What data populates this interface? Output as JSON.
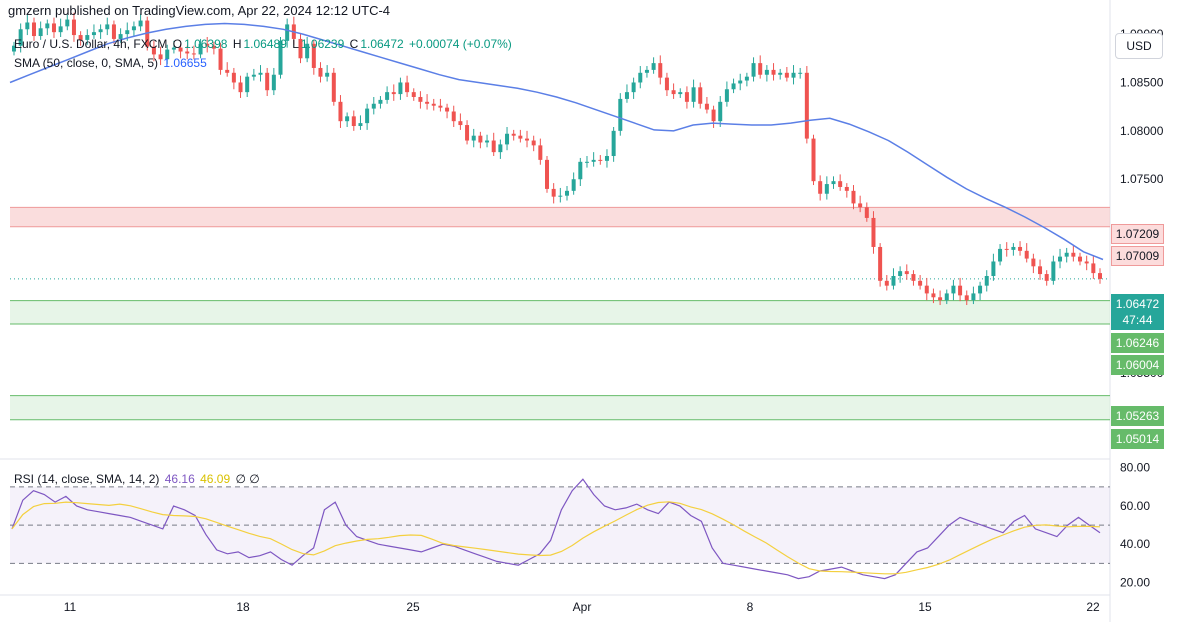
{
  "publisher": "gmzern published on TradingView.com, Apr 22, 2024 12:12 UTC-4",
  "legend_main": {
    "symbol": "Euro / U.S. Dollar, 4h, FXCM",
    "open_label": "O",
    "open": "1.06398",
    "high_label": "H",
    "high": "1.06489",
    "low_label": "L",
    "low": "1.06239",
    "close_label": "C",
    "close": "1.06472",
    "change": "+0.00074 (+0.07%)"
  },
  "legend_sma": {
    "label": "SMA (50, close, 0, SMA, 5)",
    "value": "1.06655"
  },
  "legend_rsi": {
    "label": "RSI (14, close, SMA, 14, 2)",
    "rsi": "46.16",
    "rsi_ma": "46.09",
    "extra": "∅ ∅"
  },
  "currency_button": "USD",
  "last_price": {
    "price": "1.06472",
    "countdown": "47:44"
  },
  "colors": {
    "up": "#26a69a",
    "down": "#ef5350",
    "sma": "#5b7fe6",
    "rsi": "#7e57c2",
    "rsi_ma": "#f4d03f",
    "zone_red": "#f6c6c6",
    "zone_green": "#d7efd8"
  },
  "chart_data": {
    "type": "candlestick",
    "price_axis": {
      "ticks": [
        "1.09000",
        "1.08500",
        "1.08000",
        "1.07500",
        "1.05500"
      ],
      "range": [
        1.0465,
        1.0925
      ]
    },
    "time_axis": {
      "ticks": [
        "11",
        "18",
        "25",
        "Apr",
        "8",
        "15",
        "22"
      ]
    },
    "zones": [
      {
        "name": "resistance",
        "top": 1.07209,
        "bottom": 1.07009,
        "labels": [
          "1.07209",
          "1.07009"
        ]
      },
      {
        "name": "support-1",
        "top": 1.06246,
        "bottom": 1.06004,
        "labels": [
          "1.06246",
          "1.06004"
        ]
      },
      {
        "name": "support-2",
        "top": 1.05263,
        "bottom": 1.05014,
        "labels": [
          "1.05263",
          "1.05014"
        ]
      }
    ],
    "candles_close": [
      1.0888,
      1.0905,
      1.0912,
      1.0898,
      1.0906,
      1.0911,
      1.0902,
      1.0908,
      1.0915,
      1.0899,
      1.0894,
      1.0899,
      1.0902,
      1.0905,
      1.091,
      1.0895,
      1.09,
      1.0904,
      1.0908,
      1.0914,
      1.0887,
      1.0879,
      1.0874,
      1.0884,
      1.0886,
      1.0882,
      1.088,
      1.0879,
      1.089,
      1.0888,
      1.0885,
      1.0863,
      1.086,
      1.085,
      1.084,
      1.0856,
      1.0858,
      1.086,
      1.0842,
      1.0858,
      1.0893,
      1.091,
      1.0895,
      1.0875,
      1.089,
      1.0865,
      1.0856,
      1.086,
      1.083,
      1.081,
      1.0815,
      1.0805,
      1.0808,
      1.0823,
      1.0828,
      1.0832,
      1.084,
      1.0838,
      1.085,
      1.084,
      1.0835,
      1.083,
      1.0828,
      1.0826,
      1.0824,
      1.082,
      1.081,
      1.0806,
      1.079,
      1.0795,
      1.0788,
      1.079,
      1.0778,
      1.0786,
      1.0797,
      1.0795,
      1.0792,
      1.079,
      1.0785,
      1.077,
      1.074,
      1.0732,
      1.0733,
      1.0738,
      1.075,
      1.0768,
      1.0768,
      1.077,
      1.0769,
      1.0774,
      1.08,
      1.0833,
      1.084,
      1.085,
      1.086,
      1.0863,
      1.087,
      1.0855,
      1.0842,
      1.0838,
      1.084,
      1.083,
      1.0845,
      1.0828,
      1.0822,
      1.081,
      1.083,
      1.0843,
      1.0849,
      1.0852,
      1.0856,
      1.087,
      1.0858,
      1.0863,
      1.0858,
      1.086,
      1.0855,
      1.086,
      1.086,
      1.0792,
      1.0748,
      1.0735,
      1.0745,
      1.0748,
      1.0742,
      1.0738,
      1.0725,
      1.0721,
      1.071,
      1.068,
      1.0645,
      1.064,
      1.065,
      1.0655,
      1.0652,
      1.0645,
      1.064,
      1.0632,
      1.0628,
      1.0625,
      1.0632,
      1.064,
      1.063,
      1.0625,
      1.0632,
      1.064,
      1.065,
      1.0665,
      1.0678,
      1.0677,
      1.068,
      1.0676,
      1.0668,
      1.066,
      1.0652,
      1.0645,
      1.0665,
      1.067,
      1.0674,
      1.067,
      1.0665,
      1.0663,
      1.0653,
      1.0647
    ],
    "sma50": [
      1.085,
      1.0858,
      1.0866,
      1.0874,
      1.0882,
      1.089,
      1.0896,
      1.0901,
      1.0905,
      1.0908,
      1.091,
      1.0911,
      1.091,
      1.0908,
      1.0905,
      1.09,
      1.0894,
      1.0888,
      1.0882,
      1.0876,
      1.087,
      1.0864,
      1.0858,
      1.0853,
      1.085,
      1.0847,
      1.0844,
      1.084,
      1.0835,
      1.0829,
      1.0822,
      1.0815,
      1.0808,
      1.0801,
      1.08,
      1.0806,
      1.0808,
      1.0807,
      1.0806,
      1.0806,
      1.0808,
      1.0811,
      1.0813,
      1.0807,
      1.0799,
      1.079,
      1.0778,
      1.0765,
      1.0752,
      1.074,
      1.073,
      1.0721,
      1.0711,
      1.07,
      1.0688,
      1.0675,
      1.0667
    ],
    "rsi": [
      48,
      63,
      68,
      66,
      62,
      65,
      60,
      58,
      57,
      56,
      55,
      54,
      52,
      50,
      48,
      60,
      58,
      55,
      45,
      37,
      35,
      36,
      33,
      34,
      36,
      32,
      29,
      34,
      38,
      58,
      62,
      50,
      44,
      42,
      40,
      39,
      38,
      37,
      36,
      38,
      40,
      39,
      37,
      35,
      33,
      31,
      30,
      29,
      32,
      35,
      42,
      58,
      68,
      74,
      66,
      60,
      58,
      59,
      61,
      58,
      56,
      62,
      60,
      55,
      52,
      38,
      30,
      29,
      28,
      27,
      26,
      25,
      24,
      22,
      23,
      26,
      27,
      28,
      26,
      24,
      23,
      22,
      24,
      30,
      36,
      38,
      44,
      50,
      54,
      52,
      50,
      48,
      46,
      52,
      55,
      48,
      46,
      44,
      50,
      54,
      50,
      46
    ]
  }
}
